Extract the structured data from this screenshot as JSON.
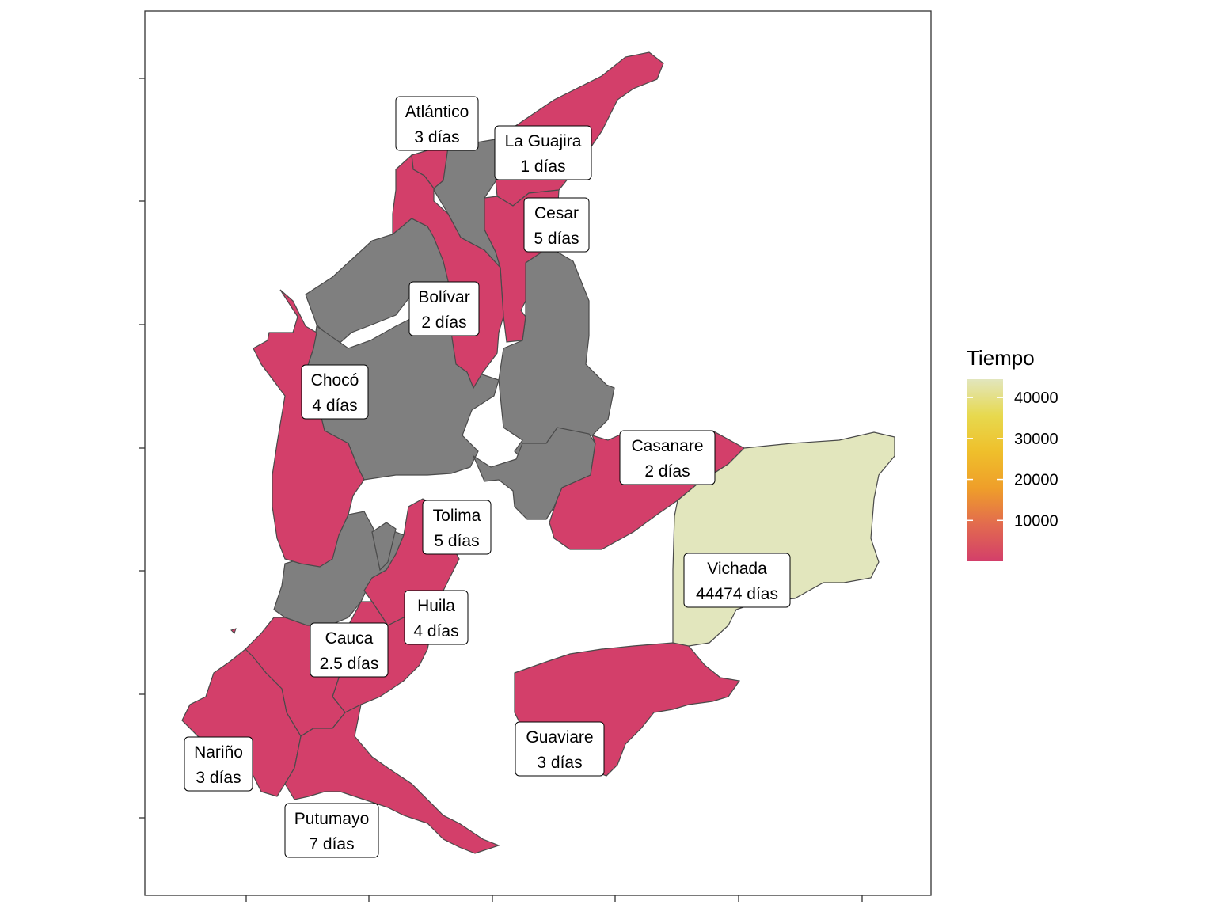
{
  "legend": {
    "title": "Tiempo",
    "ticks": [
      10000,
      20000,
      30000,
      40000
    ],
    "min": 1,
    "max": 44474,
    "gradient_colors": [
      "#d33f6a",
      "#e26a4f",
      "#ef9e2a",
      "#efbf2b",
      "#e7d94e",
      "#e2e6bd"
    ]
  },
  "colors": {
    "low": "#d33f6a",
    "high": "#e2e6bd",
    "no_data": "#7f7f7f",
    "border": "#4a4a4a"
  },
  "departments": [
    {
      "name": "Atlántico",
      "label": "3 días",
      "value": 3
    },
    {
      "name": "La Guajira",
      "label": "1 días",
      "value": 1
    },
    {
      "name": "Cesar",
      "label": "5 días",
      "value": 5
    },
    {
      "name": "Bolívar",
      "label": "2 días",
      "value": 2
    },
    {
      "name": "Chocó",
      "label": "4 días",
      "value": 4
    },
    {
      "name": "Casanare",
      "label": "2 días",
      "value": 2
    },
    {
      "name": "Tolima",
      "label": "5 días",
      "value": 5
    },
    {
      "name": "Vichada",
      "label": "44474 días",
      "value": 44474
    },
    {
      "name": "Huila",
      "label": "4 días",
      "value": 4
    },
    {
      "name": "Cauca",
      "label": "2.5 días",
      "value": 2.5
    },
    {
      "name": "Guaviare",
      "label": "3 días",
      "value": 3
    },
    {
      "name": "Nariño",
      "label": "3 días",
      "value": 3
    },
    {
      "name": "Putumayo",
      "label": "7 días",
      "value": 7
    }
  ]
}
